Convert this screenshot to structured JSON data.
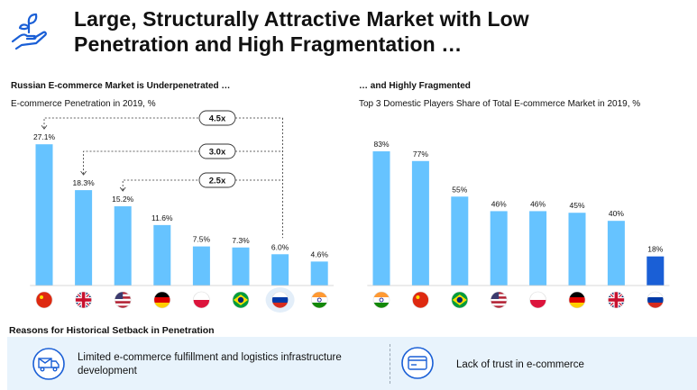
{
  "header": {
    "title_line1": "Large, Structurally Attractive Market with Low",
    "title_line2": "Penetration and High Fragmentation …",
    "icon": "hand-plant-icon"
  },
  "left_panel": {
    "title": "Russian E-commerce Market is Underpenetrated …",
    "subtitle": "E-commerce Penetration in 2019, %"
  },
  "right_panel": {
    "title": "… and Highly Fragmented",
    "subtitle": "Top 3 Domestic Players Share of Total E-commerce Market in 2019, %"
  },
  "chart_data": [
    {
      "type": "bar",
      "title": "E-commerce Penetration in 2019, %",
      "categories": [
        "China",
        "UK",
        "USA",
        "Germany",
        "Poland",
        "Brazil",
        "Russia",
        "India"
      ],
      "flags": [
        "cn",
        "uk",
        "us",
        "de",
        "pl",
        "br",
        "ru",
        "in"
      ],
      "values": [
        27.1,
        18.3,
        15.2,
        11.6,
        7.5,
        7.3,
        6.0,
        4.6
      ],
      "labels": [
        "27.1%",
        "18.3%",
        "15.2%",
        "11.6%",
        "7.5%",
        "7.3%",
        "6.0%",
        "4.6%"
      ],
      "ylim": [
        0,
        30
      ],
      "bar_color": "#66c3ff",
      "highlight": "Russia",
      "multiples": [
        {
          "label": "4.5x",
          "from": "China",
          "to": "Russia"
        },
        {
          "label": "3.0x",
          "from": "UK",
          "to": "Russia"
        },
        {
          "label": "2.5x",
          "from": "USA",
          "to": "Russia"
        }
      ]
    },
    {
      "type": "bar",
      "title": "Top 3 Domestic Players Share of Total E-commerce Market in 2019, %",
      "categories": [
        "India",
        "China",
        "Brazil",
        "USA",
        "Poland",
        "Germany",
        "UK",
        "Russia"
      ],
      "flags": [
        "in",
        "cn",
        "br",
        "us",
        "pl",
        "de",
        "uk",
        "ru"
      ],
      "values": [
        83,
        77,
        55,
        46,
        46,
        45,
        40,
        18
      ],
      "labels": [
        "83%",
        "77%",
        "55%",
        "46%",
        "46%",
        "45%",
        "40%",
        "18%"
      ],
      "ylim": [
        0,
        100
      ],
      "bar_color": "#66c3ff",
      "highlight_color": "#1a5fd6",
      "highlight": "Russia"
    }
  ],
  "reasons": {
    "title": "Reasons for Historical Setback in Penetration",
    "items": [
      {
        "icon": "delivery-truck-icon",
        "text_line1": "Limited e-commerce fulfillment and logistics infrastructure",
        "text_line2": "development"
      },
      {
        "icon": "credit-card-icon",
        "text_line1": "Lack of trust in e-commerce",
        "text_line2": ""
      }
    ]
  }
}
